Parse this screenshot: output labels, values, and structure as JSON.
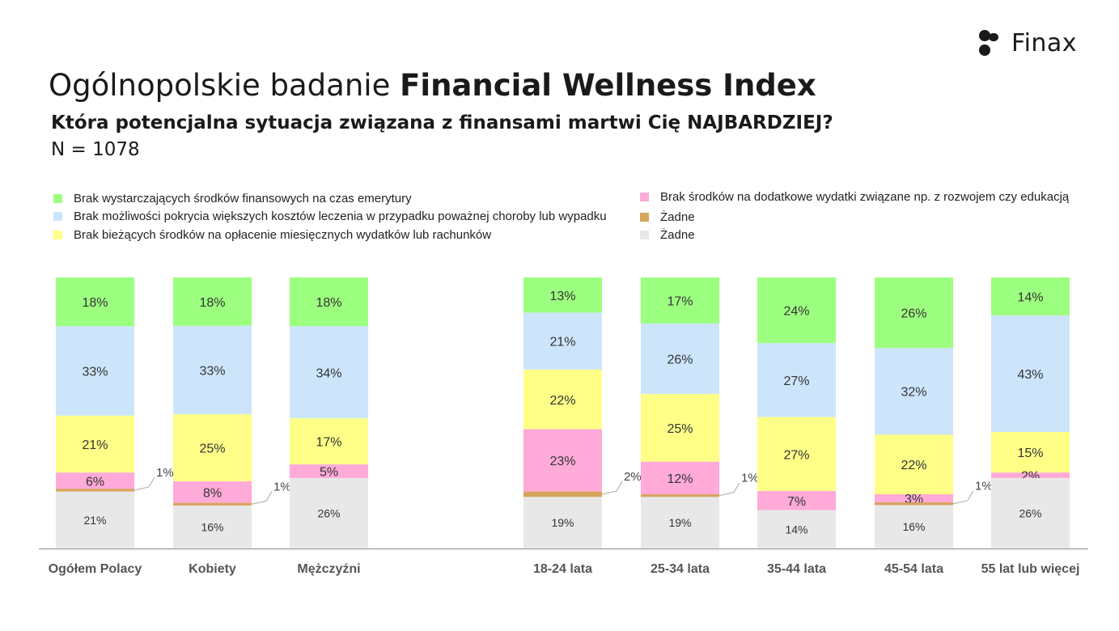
{
  "logo": {
    "text": "Finax"
  },
  "header": {
    "title_plain": "Ogólnopolskie badanie ",
    "title_bold": "Financial Wellness Index",
    "question": "Która potencjalna sytuacja związana z finansami martwi Cię NAJBARDZIEJ?",
    "sample": "N = 1078"
  },
  "colors": {
    "green": "#9cff7f",
    "blue": "#cce5fb",
    "yellow": "#ffff88",
    "pink": "#ffaad8",
    "brown": "#d6a55c",
    "gray": "#e8e8e8"
  },
  "legend": [
    {
      "label": "Brak wystarczających środków finansowych na czas emerytury",
      "color": "#9cff7f"
    },
    {
      "label": "Brak możliwości pokrycia większych kosztów leczenia w przypadku poważnej choroby lub wypadku",
      "color": "#cce5fb"
    },
    {
      "label": "Brak bieżących środków na opłacenie miesięcznych wydatków lub rachunków",
      "color": "#ffff88"
    },
    {
      "label": "Brak środków na dodatkowe wydatki związane np. z rozwojem czy edukacją",
      "color": "#ffaad8"
    },
    {
      "label": "Żadne",
      "color": "#d6a55c"
    },
    {
      "label": "Żadne",
      "color": "#e8e8e8"
    }
  ],
  "chart_data": {
    "type": "bar",
    "stacked": true,
    "percent_stacked": true,
    "categories": [
      "Ogółem Polacy",
      "Kobiety",
      "Mężczyźni",
      "18-24 lata",
      "25-34 lata",
      "35-44 lata",
      "45-54 lata",
      "55 lat lub więcej"
    ],
    "series": [
      {
        "color": "#9cff7f",
        "values": [
          18,
          18,
          18,
          13,
          17,
          24,
          26,
          14
        ],
        "labels": [
          "18%",
          "18%",
          "18%",
          "13%",
          "17%",
          "24%",
          "26%",
          "14%"
        ]
      },
      {
        "color": "#cce5fb",
        "values": [
          33,
          33,
          34,
          21,
          26,
          27,
          32,
          43
        ],
        "labels": [
          "33%",
          "33%",
          "34%",
          "21%",
          "26%",
          "27%",
          "32%",
          "43%"
        ]
      },
      {
        "color": "#ffff88",
        "values": [
          21,
          25,
          17,
          22,
          25,
          27,
          22,
          15
        ],
        "labels": [
          "21%",
          "25%",
          "17%",
          "22%",
          "25%",
          "27%",
          "22%",
          "15%"
        ]
      },
      {
        "color": "#ffaad8",
        "values": [
          6,
          8,
          5,
          23,
          12,
          7,
          3,
          2
        ],
        "labels": [
          "6%",
          "8%",
          "5%",
          "23%",
          "12%",
          "7%",
          "3%",
          "2%"
        ]
      },
      {
        "color": "#d6a55c",
        "values": [
          1,
          1,
          0,
          2,
          1,
          0,
          1,
          0
        ],
        "labels": [
          "1%",
          "1%",
          "",
          "2%",
          "1%",
          "",
          "1%",
          ""
        ]
      },
      {
        "color": "#e8e8e8",
        "values": [
          21,
          16,
          26,
          19,
          19,
          14,
          16,
          26
        ],
        "labels": [
          "21%",
          "16%",
          "26%",
          "19%",
          "19%",
          "14%",
          "16%",
          "26%"
        ]
      }
    ],
    "legend_position": "top",
    "grid": false
  }
}
